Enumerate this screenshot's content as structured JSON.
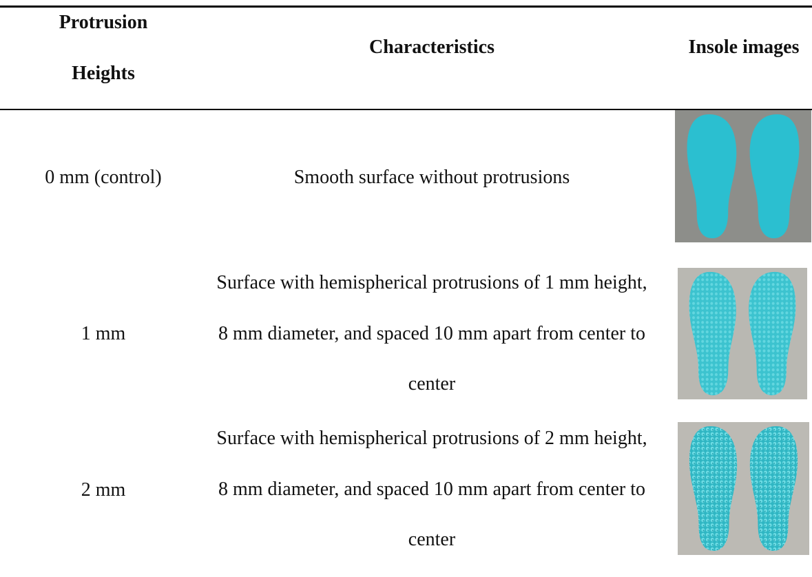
{
  "table": {
    "header": [
      "Protrusion Heights",
      "Characteristics",
      "Insole images"
    ],
    "rows": [
      [
        "0 mm (control)",
        "Smooth surface without protrusions"
      ],
      [
        "1 mm",
        "Surface with hemispherical protrusions of 1 mm height, 8 mm diameter, and spaced 10 mm apart from center to center"
      ],
      [
        "2 mm",
        "Surface with hemispherical protrusions of 2 mm height, 8 mm diameter, and spaced 10 mm apart from center to center"
      ]
    ]
  }
}
